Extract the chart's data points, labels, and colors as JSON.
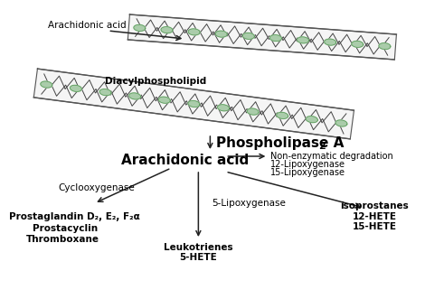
{
  "background_color": "#ffffff",
  "membrane_outline": "#555555",
  "membrane_fill": "#f8f8f8",
  "zigzag_color": "#444444",
  "oval_color": "#aaccaa",
  "oval_edge": "#559955",
  "arrow_color": "#222222",
  "text_color": "#000000",
  "texts": {
    "arachidonic_acid_top": "Arachidonic acid",
    "diacylphospholipid": "Diacylphospholipid",
    "phospholipase": "Phospholipase A",
    "phospholipase_sub": "2",
    "arachidonic_acid_mid": "Arachidonic acid",
    "cyclooxygenase": "Cyclooxygenase",
    "prostaglandin": "Prostaglandin D₂, E₂, F₂α",
    "prostacyclin": "Prostacyclin",
    "thromboxane": "Thromboxane",
    "non_enzymatic": "Non-enzymatic degradation",
    "lipoxygenase12": "12-Lipoxygenase",
    "lipoxygenase15": "15-Lipoxygenase",
    "lipoxygenase5_mid": "5-Lipoxygenase",
    "isoprostanes": "isoprostanes",
    "hete12": "12-HETE",
    "hete15": "15-HETE",
    "leukotrienes": "Leukotrienes",
    "hete5": "5-HETE"
  }
}
